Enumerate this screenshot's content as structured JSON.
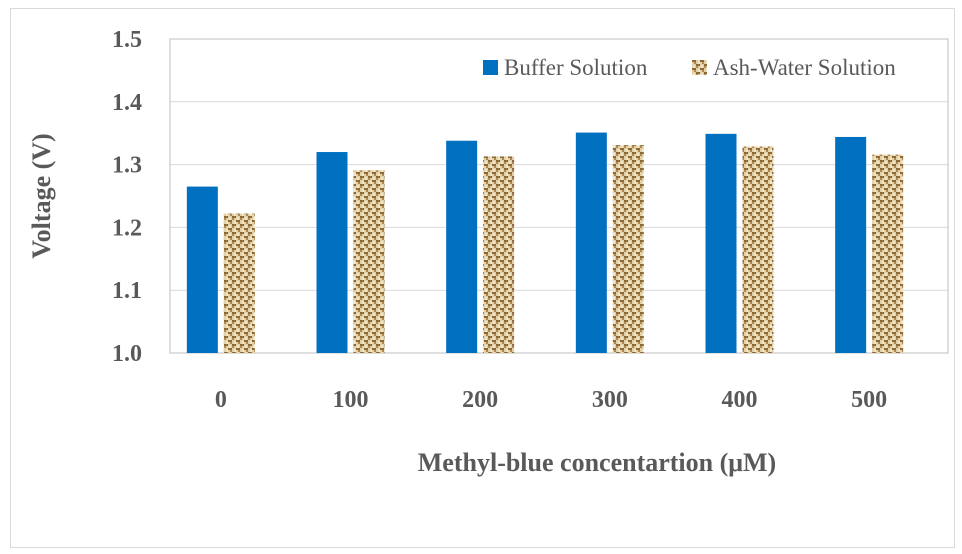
{
  "chart_data": {
    "type": "bar",
    "categories": [
      "0",
      "100",
      "200",
      "300",
      "400",
      "500"
    ],
    "series": [
      {
        "name": "Buffer Solution",
        "values": [
          1.265,
          1.32,
          1.338,
          1.351,
          1.349,
          1.344
        ],
        "color": "#0070c0",
        "pattern": "solid"
      },
      {
        "name": "Ash-Water Solution",
        "values": [
          1.222,
          1.291,
          1.313,
          1.331,
          1.329,
          1.316
        ],
        "color": "#c4a06a",
        "pattern": "woven-texture"
      }
    ],
    "title": "",
    "xlabel": "Methyl-blue concentartion (μM)",
    "ylabel": "Voltage (V)",
    "ylim": [
      1.0,
      1.5
    ],
    "yticks": [
      "1.0",
      "1.1",
      "1.2",
      "1.3",
      "1.4",
      "1.5"
    ],
    "grid": true,
    "legend_position": "top-right"
  }
}
